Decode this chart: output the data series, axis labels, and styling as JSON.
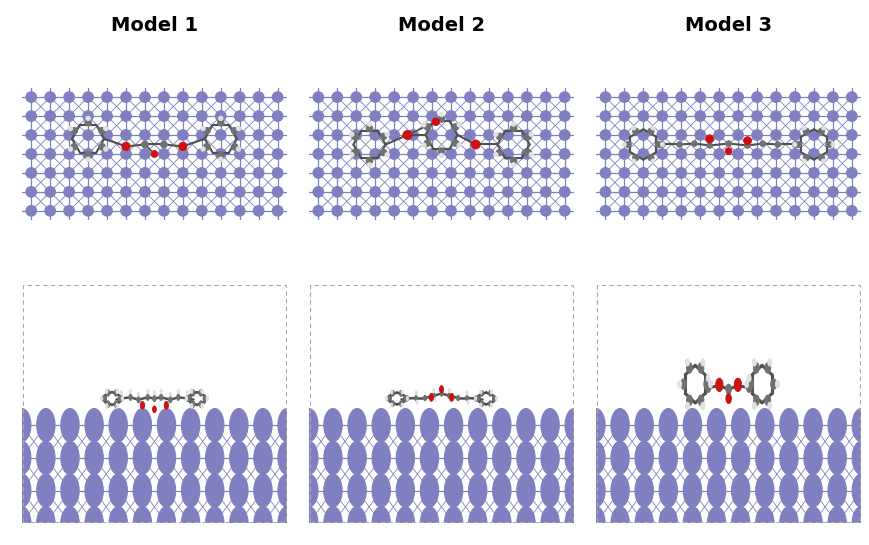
{
  "title_fontsize": 14,
  "titles": [
    "Model 1",
    "Model 2",
    "Model 3"
  ],
  "bg_color": "#ffffff",
  "fe_color": "#8080c0",
  "fe_edge_color": "#5555aa",
  "fe_line_color": "#8080c0",
  "panel_bg_top": "#dde0f0",
  "panel_bg_bot": "#ffffff",
  "C_color": "#707070",
  "H_color": "#e0e0e0",
  "O_color": "#cc1111",
  "bond_color": "#505050",
  "O_edge": "#880000",
  "H_edge": "#999999",
  "C_edge": "#333333"
}
